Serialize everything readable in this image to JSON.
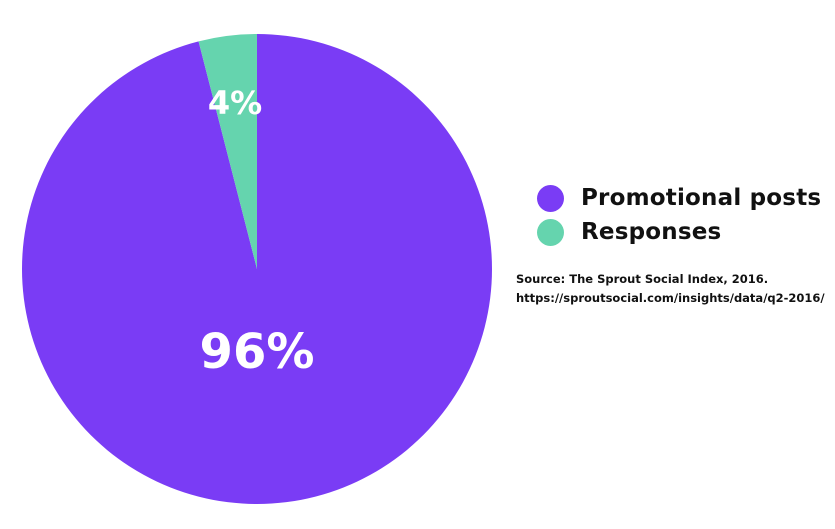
{
  "chart_data": {
    "type": "pie",
    "categories": [
      "Promotional posts",
      "Responses"
    ],
    "values": [
      96,
      4
    ],
    "data_labels": [
      "96%",
      "4%"
    ],
    "colors": [
      "#7a3cf5",
      "#65d4ae"
    ],
    "legend_placement": "right",
    "source_line1": "Source: The Sprout Social Index, 2016.",
    "source_line2": "https://sproutsocial.com/insights/data/q2-2016/"
  }
}
